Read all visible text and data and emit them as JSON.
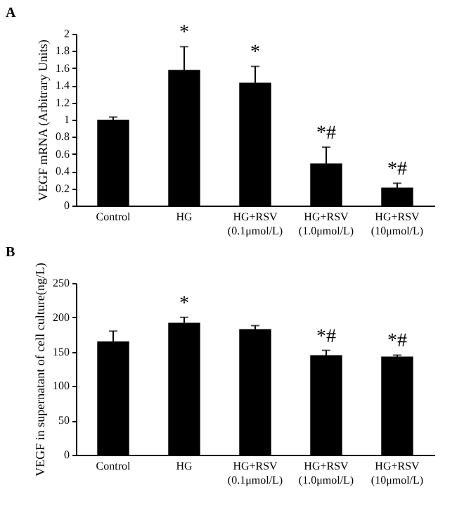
{
  "chart_data": [
    {
      "type": "bar",
      "title": "A",
      "ylabel": "VEGF mRNA (Arbitrary Units)",
      "categories": [
        "Control",
        "HG",
        "HG+RSV\n(0.1μmol/L)",
        "HG+RSV\n(1.0μmol/L)",
        "HG+RSV\n(10μmol/L)"
      ],
      "series": [
        {
          "color": "#000000",
          "values": [
            1.0,
            1.58,
            1.43,
            0.49,
            0.21
          ],
          "errors": [
            0.03,
            0.27,
            0.19,
            0.19,
            0.05
          ]
        }
      ],
      "ylim": [
        0,
        2
      ],
      "yticks": [
        0,
        0.2,
        0.4,
        0.6,
        0.8,
        1,
        1.2,
        1.4,
        1.6,
        1.8,
        2
      ],
      "grid": false,
      "annotations": [
        {
          "text": "*",
          "x": "HG",
          "y": 1.85
        },
        {
          "text": "*",
          "x": "HG+RSV\n(0.1μmol/L)",
          "y": 1.62
        },
        {
          "text": "*#",
          "x": "HG+RSV\n(1.0μmol/L)",
          "y": 0.68
        },
        {
          "text": "*#",
          "x": "HG+RSV\n(10μmol/L)",
          "y": 0.26
        }
      ]
    },
    {
      "type": "bar",
      "title": "B",
      "ylabel": "VEGF in supernatant of cell culture(ng/L)",
      "categories": [
        "Control",
        "HG",
        "HG+RSV\n(0.1μmol/L)",
        "HG+RSV\n(1.0μmol/L)",
        "HG+RSV\n(10μmol/L)"
      ],
      "series": [
        {
          "color": "#000000",
          "values": [
            165,
            192,
            183,
            145,
            143
          ],
          "errors": [
            15,
            8,
            5,
            7,
            2
          ]
        }
      ],
      "ylim": [
        0,
        250
      ],
      "yticks": [
        0,
        50,
        100,
        150,
        200,
        250
      ],
      "grid": false,
      "annotations": [
        {
          "text": "*",
          "x": "HG",
          "y": 200
        },
        {
          "text": "*#",
          "x": "HG+RSV\n(1.0μmol/L)",
          "y": 152
        },
        {
          "text": "*#",
          "x": "HG+RSV\n(10μmol/L)",
          "y": 145
        }
      ]
    }
  ]
}
